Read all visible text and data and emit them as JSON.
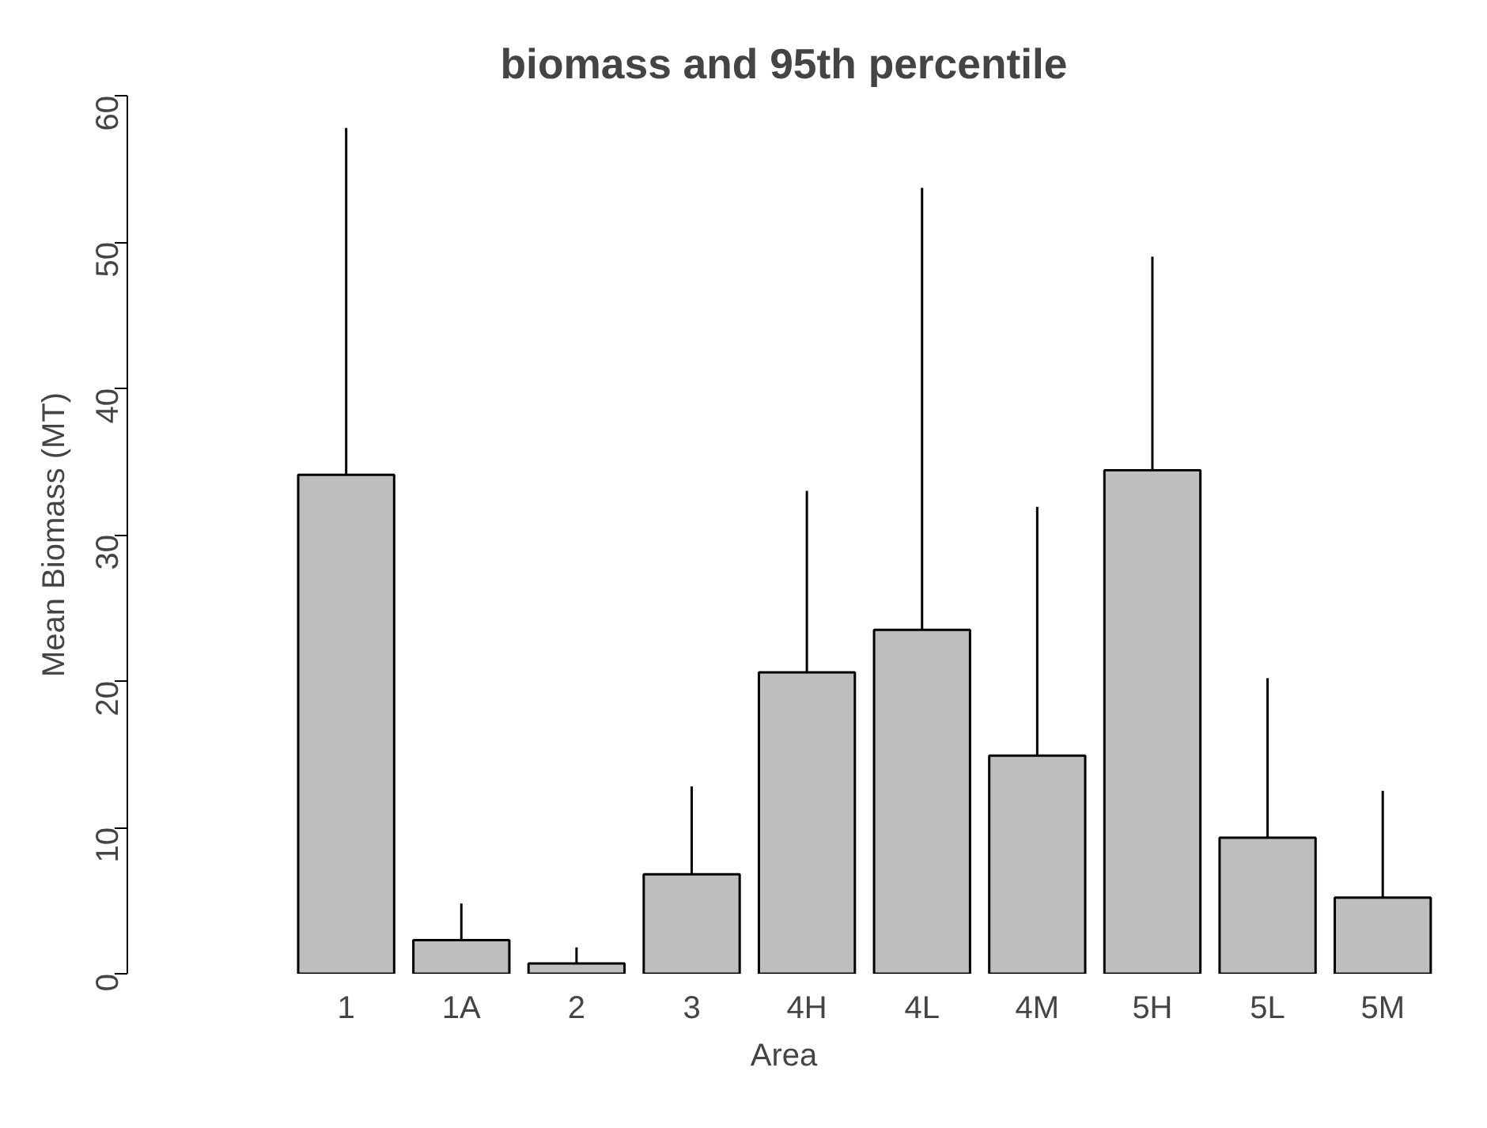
{
  "chart_data": {
    "type": "bar",
    "title": "biomass and 95th percentile",
    "xlabel": "Area",
    "ylabel": "Mean Biomass (MT)",
    "categories": [
      "1",
      "1A",
      "2",
      "3",
      "4H",
      "4L",
      "4M",
      "5H",
      "5L",
      "5M"
    ],
    "values": [
      34.1,
      2.3,
      0.7,
      6.8,
      20.6,
      23.5,
      14.9,
      34.4,
      9.3,
      5.2
    ],
    "errors": [
      [
        34.1,
        57.8
      ],
      [
        2.3,
        4.8
      ],
      [
        0.7,
        1.8
      ],
      [
        6.8,
        12.8
      ],
      [
        20.6,
        33.0
      ],
      [
        23.5,
        53.7
      ],
      [
        14.9,
        31.9
      ],
      [
        34.4,
        49.0
      ],
      [
        9.3,
        20.2
      ],
      [
        5.2,
        12.5
      ]
    ],
    "color": "#bebebe",
    "ylim": [
      0,
      60
    ],
    "yticks": [
      0,
      10,
      20,
      30,
      40,
      50,
      60
    ],
    "grid": false
  }
}
